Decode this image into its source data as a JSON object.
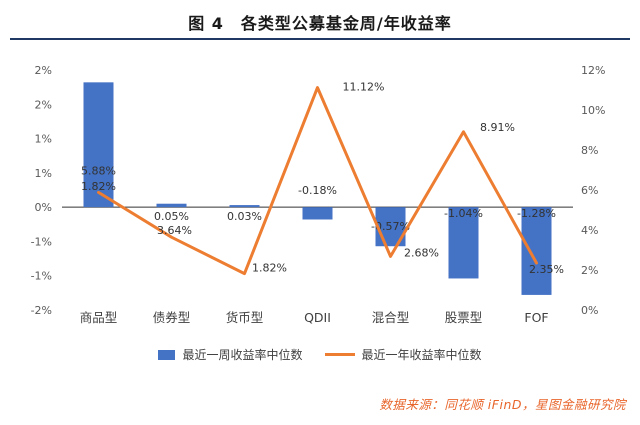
{
  "title": "图 4　各类型公募基金周/年收益率",
  "source": "数据来源：同花顺 iFinD，星图金融研究院",
  "legend": [
    {
      "label": "最近一周收益率中位数",
      "type": "bar",
      "color": "#4472C4"
    },
    {
      "label": "最近一年收益率中位数",
      "type": "line",
      "color": "#ED7D31"
    }
  ],
  "colors": {
    "bar": "#4472C4",
    "line": "#ED7D31",
    "rule": "#1F3864",
    "source_text": "#E8662C",
    "axis_line": "#333333",
    "tick_text": "#595959",
    "label_text": "#333333",
    "category_text": "#404040"
  },
  "chart_data": {
    "type": "bar",
    "subtype": "bar-line-combo",
    "title": "图 4　各类型公募基金周/年收益率",
    "categories": [
      "商品型",
      "债券型",
      "货币型",
      "QDII",
      "混合型",
      "股票型",
      "FOF"
    ],
    "series": [
      {
        "name": "最近一周收益率中位数",
        "type": "bar",
        "axis": "left",
        "color": "#4472C4",
        "values": [
          1.82,
          0.05,
          0.03,
          -0.18,
          -0.57,
          -1.04,
          -1.28
        ],
        "labels": [
          "1.82%",
          "0.05%",
          "0.03%",
          "-0.18%",
          "-0.57%",
          "-1.04%",
          "-1.28%"
        ]
      },
      {
        "name": "最近一年收益率中位数",
        "type": "line",
        "axis": "right",
        "color": "#ED7D31",
        "values": [
          5.88,
          3.64,
          1.82,
          11.12,
          2.68,
          8.91,
          2.35
        ],
        "labels": [
          "5.88%",
          "3.64%",
          "1.82%",
          "11.12%",
          "2.68%",
          "8.91%",
          "2.35%"
        ]
      }
    ],
    "left_axis": {
      "min": -1.5,
      "max": 2,
      "tick_labels": [
        "2%",
        "2%",
        "1%",
        "1%",
        "0%",
        "-1%",
        "-1%",
        "-2%"
      ]
    },
    "right_axis": {
      "min": 0,
      "max": 12,
      "tick_labels": [
        "12%",
        "10%",
        "8%",
        "6%",
        "4%",
        "2%",
        "0%"
      ]
    },
    "grid": false,
    "legend_position": "bottom"
  }
}
